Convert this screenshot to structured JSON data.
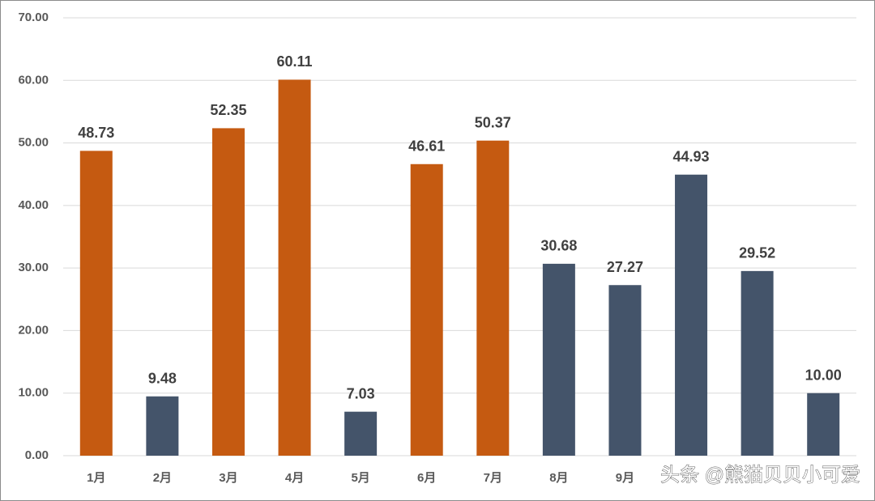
{
  "chart_data": {
    "type": "bar",
    "categories": [
      "1月",
      "2月",
      "3月",
      "4月",
      "5月",
      "6月",
      "7月",
      "8月",
      "9月",
      null,
      null,
      null
    ],
    "values": [
      48.73,
      9.48,
      52.35,
      60.11,
      7.03,
      46.61,
      50.37,
      30.68,
      27.27,
      44.93,
      29.52,
      10.0
    ],
    "value_labels": [
      "48.73",
      "9.48",
      "52.35",
      "60.11",
      "7.03",
      "46.61",
      "50.37",
      "30.68",
      "27.27",
      "44.93",
      "29.52",
      "10.00"
    ],
    "colors": [
      "#c55a11",
      "#44546a",
      "#c55a11",
      "#c55a11",
      "#44546a",
      "#c55a11",
      "#c55a11",
      "#44546a",
      "#44546a",
      "#44546a",
      "#44546a",
      "#44546a"
    ],
    "ylim": [
      0,
      70
    ],
    "yticks": [
      {
        "value": 0,
        "label": "0.00"
      },
      {
        "value": 10,
        "label": "10.00"
      },
      {
        "value": 20,
        "label": "20.00"
      },
      {
        "value": 30,
        "label": "30.00"
      },
      {
        "value": 40,
        "label": "40.00"
      },
      {
        "value": 50,
        "label": "50.00"
      },
      {
        "value": 60,
        "label": "60.00"
      },
      {
        "value": 70,
        "label": "70.00"
      }
    ],
    "grid": true,
    "watermark": "头条 @熊猫贝贝小可爱"
  }
}
